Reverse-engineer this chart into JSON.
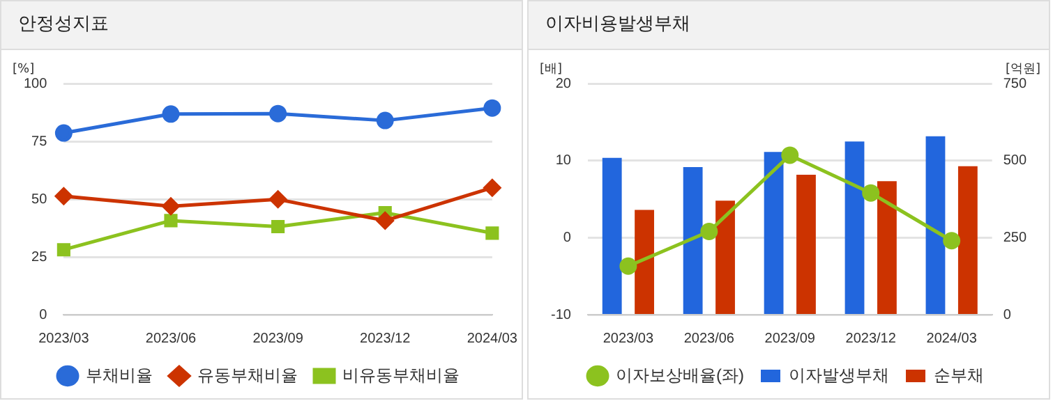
{
  "chart_data": [
    {
      "type": "line",
      "title": "안정성지표",
      "ylabel": "[%]",
      "categories": [
        "2023/03",
        "2023/06",
        "2023/09",
        "2023/12",
        "2024/03"
      ],
      "ylim": [
        0,
        100
      ],
      "yticks": [
        0,
        25,
        50,
        75,
        100
      ],
      "grid": "y",
      "legend": "bottom",
      "series": [
        {
          "name": "부채비율",
          "color": "#2a6bd8",
          "marker": "circle",
          "values": [
            78.6,
            86.8,
            87,
            84,
            89.4
          ]
        },
        {
          "name": "유동부채비율",
          "color": "#cc3300",
          "marker": "diamond",
          "values": [
            51.3,
            46.9,
            49.9,
            40.7,
            54.9
          ]
        },
        {
          "name": "비유동부채비율",
          "color": "#8cc21f",
          "marker": "square",
          "values": [
            28.1,
            40.7,
            38.1,
            44.1,
            35.3
          ]
        }
      ]
    },
    {
      "type": "bar",
      "title": "이자비용발생부채",
      "ylabel": "[배]",
      "y2label": "[억원]",
      "categories": [
        "2023/03",
        "2023/06",
        "2023/09",
        "2023/12",
        "2024/03"
      ],
      "ylim": [
        -10,
        20
      ],
      "yticks": [
        -10,
        0,
        10,
        20
      ],
      "y2lim": [
        0,
        750
      ],
      "y2ticks": [
        0,
        250,
        500,
        750
      ],
      "grid": "y",
      "legend": "bottom",
      "series": [
        {
          "name": "이자발생부채",
          "color": "#2266dd",
          "axis": "y2",
          "values": [
            509,
            479,
            528,
            562,
            579
          ]
        },
        {
          "name": "순부채",
          "color": "#cc3300",
          "axis": "y2",
          "values": [
            340,
            370,
            454,
            433,
            482
          ]
        },
        {
          "name": "이자보상배율(좌)",
          "type": "line",
          "color": "#8cc21f",
          "marker": "circle",
          "axis": "y",
          "values": [
            -3.7,
            0.8,
            10.7,
            5.8,
            -0.4
          ]
        }
      ]
    }
  ]
}
